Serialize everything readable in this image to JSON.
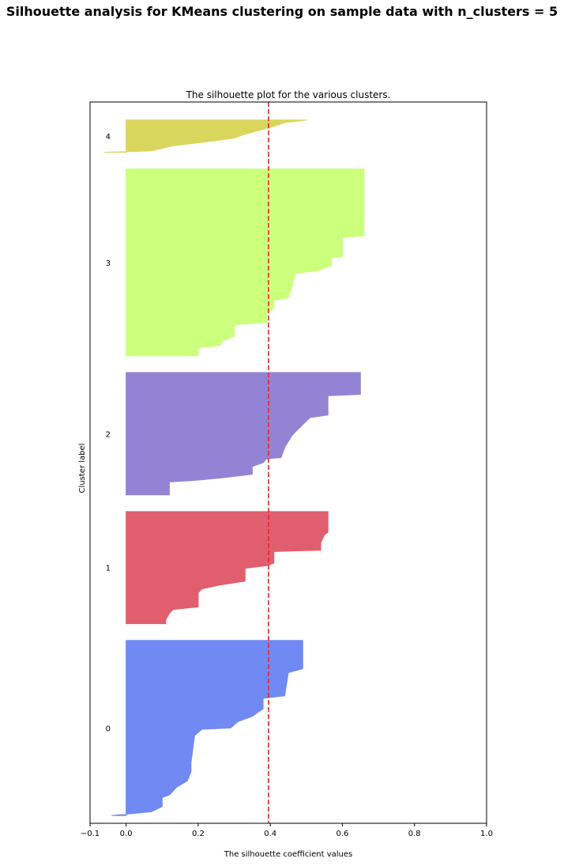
{
  "chart_data": {
    "type": "silhouette",
    "suptitle": "Silhouette analysis for KMeans clustering on sample data with n_clusters = 5",
    "title": "The silhouette plot for the various clusters.",
    "x_label": "The silhouette coefficient values",
    "y_label": "Cluster label",
    "xlim": [
      -0.1,
      1.0
    ],
    "xticks": [
      {
        "value": -0.1,
        "label": "−0.1"
      },
      {
        "value": 0,
        "label": "0.0"
      },
      0.2,
      0.4,
      0.6,
      0.8,
      {
        "value": 1.0,
        "label": "1.0"
      }
    ],
    "ylim": [
      0,
      560
    ],
    "average_line": {
      "value": 0.395,
      "color": "#e8262a"
    },
    "series": [
      {
        "name": "0",
        "color": "#7089f3",
        "y": [
          6,
          9,
          13,
          20,
          22,
          28,
          33,
          40,
          47,
          68,
          73,
          74,
          79,
          83,
          89,
          97,
          99,
          117,
          120,
          139,
          142
        ],
        "values": [
          -0.04,
          0.07,
          0.1,
          0.1,
          0.12,
          0.14,
          0.17,
          0.18,
          0.18,
          0.19,
          0.21,
          0.29,
          0.31,
          0.35,
          0.38,
          0.38,
          0.44,
          0.45,
          0.49,
          0.49,
          0.49
        ]
      },
      {
        "name": "1",
        "color": "#e05e6e",
        "y": [
          155,
          158,
          163,
          166,
          168,
          179,
          182,
          185,
          188,
          198,
          200,
          202,
          211,
          212,
          218,
          224,
          226,
          242
        ],
        "values": [
          0.11,
          0.11,
          0.12,
          0.13,
          0.2,
          0.2,
          0.21,
          0.26,
          0.33,
          0.33,
          0.39,
          0.41,
          0.41,
          0.54,
          0.54,
          0.55,
          0.56,
          0.56
        ]
      },
      {
        "name": "2",
        "color": "#9383d4",
        "y": [
          255,
          265,
          266,
          268,
          271,
          277,
          280,
          283,
          284,
          292,
          301,
          304,
          315,
          317,
          332,
          333,
          350
        ],
        "values": [
          0.12,
          0.12,
          0.18,
          0.26,
          0.35,
          0.35,
          0.38,
          0.39,
          0.43,
          0.44,
          0.46,
          0.47,
          0.51,
          0.56,
          0.56,
          0.65,
          0.65
        ]
      },
      {
        "name": "3",
        "color": "#ccff7c",
        "y": [
          363,
          369,
          371,
          375,
          378,
          387,
          389,
          396,
          400,
          406,
          408,
          417,
          427,
          429,
          433,
          439,
          440,
          455,
          456,
          476,
          477,
          508
        ],
        "values": [
          0.2,
          0.2,
          0.26,
          0.27,
          0.3,
          0.3,
          0.39,
          0.39,
          0.41,
          0.41,
          0.45,
          0.46,
          0.47,
          0.53,
          0.57,
          0.57,
          0.6,
          0.6,
          0.66,
          0.66,
          0.66,
          0.66
        ]
      },
      {
        "name": "4",
        "color": "#d9d65e",
        "y": [
          521,
          522,
          526,
          529,
          532,
          535,
          538,
          541,
          544,
          546
        ],
        "values": [
          -0.06,
          0.07,
          0.13,
          0.22,
          0.3,
          0.33,
          0.37,
          0.41,
          0.44,
          0.5
        ]
      }
    ]
  }
}
